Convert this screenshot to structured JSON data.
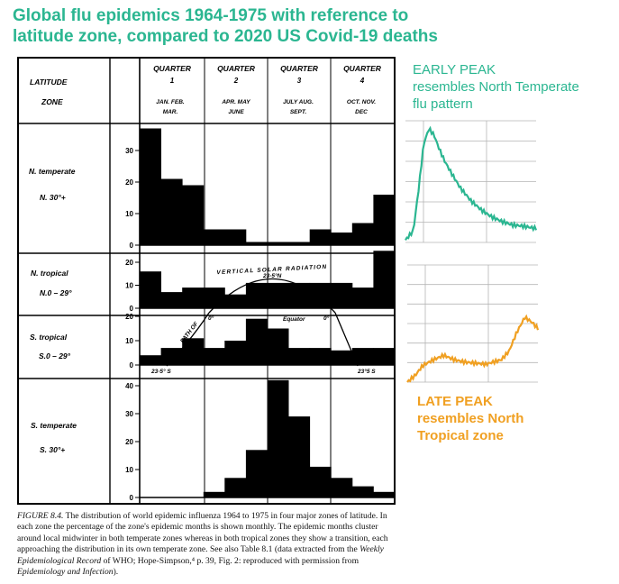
{
  "title": {
    "line1": "Global flu epidemics 1964-1975 with reference to",
    "line2": "latitude zone, compared to 2020 US Covid-19 deaths"
  },
  "figure": {
    "header": {
      "latitude": "LATITUDE",
      "zone": "ZONE",
      "quarters": [
        {
          "label": "QUARTER",
          "num": "1",
          "months1": "JAN.  FEB.",
          "months2": "MAR."
        },
        {
          "label": "QUARTER",
          "num": "2",
          "months1": "APR.  MAY",
          "months2": "JUNE"
        },
        {
          "label": "QUARTER",
          "num": "3",
          "months1": "JULY  AUG.",
          "months2": "SEPT."
        },
        {
          "label": "QUARTER",
          "num": "4",
          "months1": "OCT.  NOV.",
          "months2": "DEC"
        }
      ]
    },
    "annotations": {
      "solar": "VERTICAL SOLAR RADIATION",
      "n235": "23·5°N",
      "path_of": "PATH OF",
      "equator": "Equator",
      "zero_left": "0°",
      "zero_right": "0°",
      "s235_left": "23·5° S",
      "s235_right": "23°5 S"
    }
  },
  "chart_data": [
    {
      "type": "bar",
      "zone": "N. temperate",
      "zone_sub": "N. 30°+",
      "categories": [
        "Jan",
        "Feb",
        "Mar",
        "Apr",
        "May",
        "Jun",
        "Jul",
        "Aug",
        "Sep",
        "Oct",
        "Nov",
        "Dec"
      ],
      "values": [
        37,
        21,
        19,
        5,
        5,
        1,
        1,
        1,
        5,
        4,
        7,
        16
      ],
      "yticks": [
        0,
        10,
        20,
        30
      ],
      "ylim": [
        0,
        40
      ]
    },
    {
      "type": "bar",
      "zone": "N. tropical",
      "zone_sub": "N.0 – 29°",
      "categories": [
        "Jan",
        "Feb",
        "Mar",
        "Apr",
        "May",
        "Jun",
        "Jul",
        "Aug",
        "Sep",
        "Oct",
        "Nov",
        "Dec"
      ],
      "values": [
        16,
        7,
        9,
        9,
        6,
        11,
        11,
        11,
        11,
        11,
        9,
        25
      ],
      "yticks": [
        0,
        10,
        20
      ],
      "ylim": [
        0,
        25
      ]
    },
    {
      "type": "bar",
      "zone": "S. tropical",
      "zone_sub": "S.0 – 29°",
      "categories": [
        "Jan",
        "Feb",
        "Mar",
        "Apr",
        "May",
        "Jun",
        "Jul",
        "Aug",
        "Sep",
        "Oct",
        "Nov",
        "Dec"
      ],
      "values": [
        4,
        7,
        11,
        7,
        10,
        19,
        15,
        7,
        7,
        6,
        7,
        7
      ],
      "yticks": [
        0,
        10,
        20
      ],
      "ylim": [
        0,
        20
      ]
    },
    {
      "type": "bar",
      "zone": "S. temperate",
      "zone_sub": "S. 30°+",
      "categories": [
        "Jan",
        "Feb",
        "Mar",
        "Apr",
        "May",
        "Jun",
        "Jul",
        "Aug",
        "Sep",
        "Oct",
        "Nov",
        "Dec"
      ],
      "values": [
        0,
        0,
        0,
        2,
        7,
        17,
        42,
        29,
        11,
        7,
        4,
        2
      ],
      "yticks": [
        0,
        10,
        20,
        30,
        40
      ],
      "ylim": [
        0,
        42
      ]
    },
    {
      "type": "line",
      "name": "early-peak",
      "color": "#2bb691",
      "x": [
        0,
        0.06,
        0.1,
        0.14,
        0.18,
        0.22,
        0.26,
        0.3,
        0.36,
        0.42,
        0.5,
        0.58,
        0.66,
        0.74,
        0.82,
        0.9,
        1
      ],
      "y": [
        2,
        10,
        45,
        85,
        98,
        92,
        80,
        70,
        58,
        47,
        36,
        28,
        22,
        18,
        15,
        14,
        12
      ]
    },
    {
      "type": "line",
      "name": "late-peak",
      "color": "#f0a022",
      "x": [
        0,
        0.06,
        0.12,
        0.2,
        0.28,
        0.36,
        0.44,
        0.52,
        0.6,
        0.66,
        0.72,
        0.78,
        0.84,
        0.9,
        0.95,
        1
      ],
      "y": [
        0,
        6,
        15,
        20,
        24,
        20,
        18,
        17,
        16,
        18,
        20,
        28,
        45,
        58,
        54,
        48
      ]
    }
  ],
  "caption": {
    "label": "FIGURE 8.4.",
    "text1": " The distribution of world epidemic influenza 1964 to 1975 in four major zones of latitude. In each zone the percentage of the zone's epidemic months is shown monthly. The epidemic months cluster around local midwinter in both temperate zones whereas in both tropical zones they show a transition, each approaching the distribution in its own temperate zone. See also Table 8.1 (data extracted from the ",
    "source": "Weekly Epidemiological Record",
    "text2": " of WHO; Hope-Simpson,⁴ p. 39, Fig. 2: reproduced with permission from ",
    "journal": "Epidemiology and Infection",
    "end": ")."
  },
  "notes": {
    "early1": "EARLY PEAK",
    "early2": "resembles North Temperate",
    "early3": "flu pattern",
    "late1": "LATE PEAK",
    "late2": "resembles North",
    "late3": "Tropical zone"
  }
}
